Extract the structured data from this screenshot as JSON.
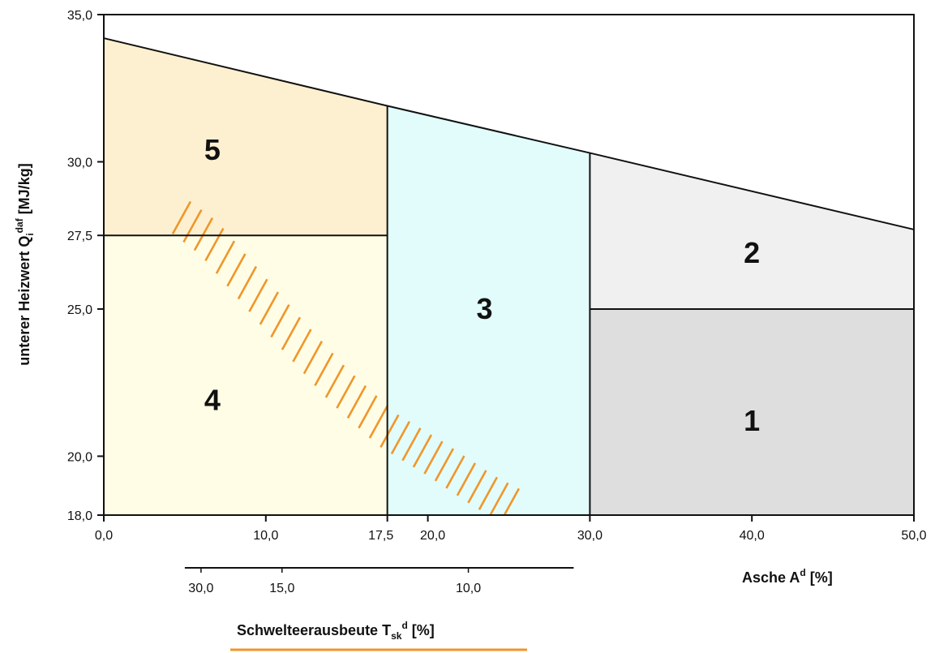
{
  "chart_data": {
    "type": "area",
    "x_axis": {
      "label": "Asche A",
      "label_sup": "d",
      "label_unit": " [%]",
      "range": [
        0,
        50
      ],
      "ticks": [
        {
          "value": 0,
          "label": "0,0"
        },
        {
          "value": 10,
          "label": "10,0"
        },
        {
          "value": 17.5,
          "label": "17,5"
        },
        {
          "value": 20,
          "label": "20,0"
        },
        {
          "value": 30,
          "label": "30,0"
        },
        {
          "value": 40,
          "label": "40,0"
        },
        {
          "value": 50,
          "label": "50,0"
        }
      ]
    },
    "y_axis": {
      "label": "unterer Heizwert Q",
      "label_sub": "i",
      "label_sup": "daf",
      "label_unit": " [MJ/kg]",
      "range": [
        18,
        35
      ],
      "ticks": [
        {
          "value": 18,
          "label": "18,0"
        },
        {
          "value": 20,
          "label": "20,0"
        },
        {
          "value": 25,
          "label": "25,0"
        },
        {
          "value": 27.5,
          "label": "27,5"
        },
        {
          "value": 30,
          "label": "30,0"
        },
        {
          "value": 35,
          "label": "35,0"
        }
      ]
    },
    "secondary_x_axis": {
      "label": "Schwelteerausbeute T",
      "label_sub": "sk",
      "label_sup": "d",
      "label_unit": " [%]",
      "line_x_range": [
        5,
        29
      ],
      "ticks": [
        {
          "x": 6,
          "label": "30,0"
        },
        {
          "x": 11,
          "label": "15,0"
        },
        {
          "x": 22.5,
          "label": "10,0"
        }
      ]
    },
    "upper_boundary": [
      {
        "x": 0,
        "y": 34.2
      },
      {
        "x": 17.5,
        "y": 31.9
      },
      {
        "x": 30,
        "y": 30.3
      },
      {
        "x": 50,
        "y": 27.7
      }
    ],
    "regions": [
      {
        "label": "1",
        "x_range": [
          30,
          50
        ],
        "y_bottom": 18,
        "y_top": 25,
        "color": "#dedede",
        "label_pos": [
          40,
          21.2
        ]
      },
      {
        "label": "2",
        "x_range": [
          30,
          50
        ],
        "y_bottom": 25,
        "y_top": "boundary",
        "color": "#f0f0f0",
        "label_pos": [
          40,
          26.9
        ]
      },
      {
        "label": "3",
        "x_range": [
          17.5,
          30
        ],
        "y_bottom": 18,
        "y_top": "boundary",
        "color": "#e2fcfc",
        "label_pos": [
          23.5,
          25
        ]
      },
      {
        "label": "4",
        "x_range": [
          0,
          17.5
        ],
        "y_bottom": 18,
        "y_top": 27.5,
        "color": "#fffde6",
        "label_pos": [
          6.7,
          21.9
        ]
      },
      {
        "label": "5",
        "x_range": [
          0,
          17.5
        ],
        "y_bottom": 27.5,
        "y_top": "boundary",
        "color": "#fdf0d0",
        "label_pos": [
          6.7,
          30.4
        ]
      }
    ],
    "hatched_band": {
      "color": "#f0962a",
      "centerline": [
        {
          "x": 4.8,
          "y": 28.1
        },
        {
          "x": 6.5,
          "y": 27.4
        },
        {
          "x": 9.0,
          "y": 25.8
        },
        {
          "x": 11.5,
          "y": 24.2
        },
        {
          "x": 14.5,
          "y": 22.4
        },
        {
          "x": 17.5,
          "y": 20.9
        },
        {
          "x": 20.5,
          "y": 19.9
        },
        {
          "x": 23.5,
          "y": 18.8
        },
        {
          "x": 25.6,
          "y": 18.2
        }
      ],
      "half_height": 0.55
    },
    "grid": false
  }
}
